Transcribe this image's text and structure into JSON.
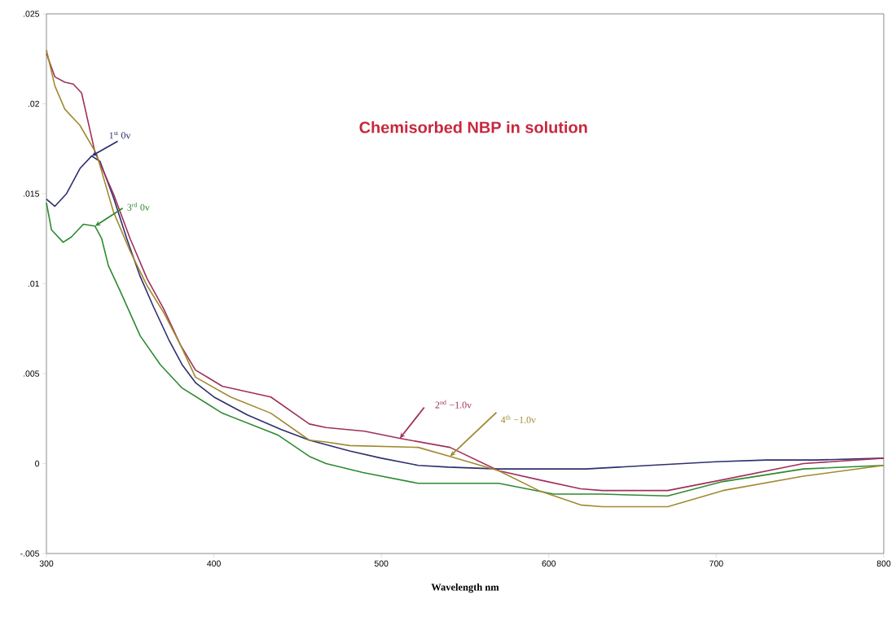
{
  "chart_data": {
    "type": "line",
    "title": "Chemisorbed NBP in solution",
    "xlabel": "Wavelength nm",
    "xlim": [
      300,
      800
    ],
    "ylim": [
      -0.005,
      0.025
    ],
    "xticks": [
      300,
      400,
      500,
      600,
      700,
      800
    ],
    "yticks": [
      {
        "value": -0.005,
        "label": "-.005"
      },
      0,
      {
        "value": 0.005,
        "label": ".005"
      },
      {
        "value": 0.01,
        "label": ".01"
      },
      {
        "value": 0.015,
        "label": ".015"
      },
      {
        "value": 0.02,
        "label": ".02"
      },
      {
        "value": 0.025,
        "label": ".025"
      }
    ],
    "series": [
      {
        "color": "#2e2f6e",
        "x": [
          300,
          305,
          312,
          320,
          327,
          332,
          340,
          348,
          356,
          364,
          373,
          381,
          389,
          400,
          420,
          440,
          457,
          481,
          500,
          522,
          540,
          570,
          603,
          622,
          660,
          700,
          730,
          760,
          800
        ],
        "values": [
          0.0147,
          0.0143,
          0.015,
          0.0164,
          0.0171,
          0.0168,
          0.0148,
          0.0125,
          0.0104,
          0.0087,
          0.0069,
          0.0055,
          0.0045,
          0.0037,
          0.0027,
          0.0019,
          0.0013,
          0.0007,
          0.0003,
          -0.0001,
          -0.0002,
          -0.0003,
          -0.0003,
          -0.0003,
          -0.0001,
          0.0001,
          0.0002,
          0.0002,
          0.0003
        ]
      },
      {
        "color": "#a0305a",
        "x": [
          300,
          305,
          311,
          316,
          321,
          329,
          340,
          350,
          360,
          370,
          380,
          389,
          405,
          434,
          457,
          467,
          490,
          511,
          541,
          570,
          594,
          619,
          632,
          671,
          704,
          752,
          800
        ],
        "values": [
          0.0228,
          0.0215,
          0.0212,
          0.0211,
          0.0206,
          0.0173,
          0.015,
          0.0125,
          0.0103,
          0.0086,
          0.0066,
          0.0052,
          0.0043,
          0.0037,
          0.0022,
          0.002,
          0.0018,
          0.0014,
          0.0009,
          -0.0004,
          -0.0009,
          -0.0014,
          -0.0015,
          -0.0015,
          -0.0009,
          0.0,
          0.0003
        ]
      },
      {
        "color": "#2e8a30",
        "x": [
          300,
          303,
          310,
          315,
          322,
          329,
          333,
          337,
          344,
          356,
          368,
          381,
          405,
          438,
          457,
          467,
          489,
          522,
          570,
          603,
          632,
          671,
          704,
          752,
          800
        ],
        "values": [
          0.0145,
          0.013,
          0.0123,
          0.0126,
          0.0133,
          0.0132,
          0.0125,
          0.011,
          0.0096,
          0.0071,
          0.0055,
          0.0042,
          0.0028,
          0.0016,
          0.0004,
          0.0,
          -0.0005,
          -0.0011,
          -0.0011,
          -0.0017,
          -0.0017,
          -0.0018,
          -0.001,
          -0.0003,
          -0.0001
        ]
      },
      {
        "color": "#a08a30",
        "x": [
          300,
          305,
          311,
          320,
          330,
          340,
          350,
          360,
          370,
          380,
          389,
          410,
          434,
          457,
          467,
          481,
          522,
          541,
          570,
          594,
          619,
          632,
          671,
          704,
          752,
          800
        ],
        "values": [
          0.023,
          0.021,
          0.0197,
          0.0188,
          0.0172,
          0.014,
          0.0118,
          0.0099,
          0.0084,
          0.0066,
          0.0048,
          0.0037,
          0.0028,
          0.0013,
          0.0012,
          0.001,
          0.0009,
          0.0004,
          -0.0004,
          -0.0015,
          -0.0023,
          -0.0024,
          -0.0024,
          -0.0015,
          -0.0007,
          -0.0001
        ]
      }
    ],
    "annotations": [
      {
        "text": "1$^{st}$ 0v",
        "x": 327,
        "y": 0.0171
      },
      {
        "text": "2$^{nd}$ −1.0v",
        "x": 511,
        "y": 0.0014
      },
      {
        "text": "3$^{rd}$ 0v",
        "x": 329,
        "y": 0.0132
      },
      {
        "text": "4$^{th}$ −1.0v",
        "x": 541,
        "y": 0.0004
      }
    ]
  }
}
